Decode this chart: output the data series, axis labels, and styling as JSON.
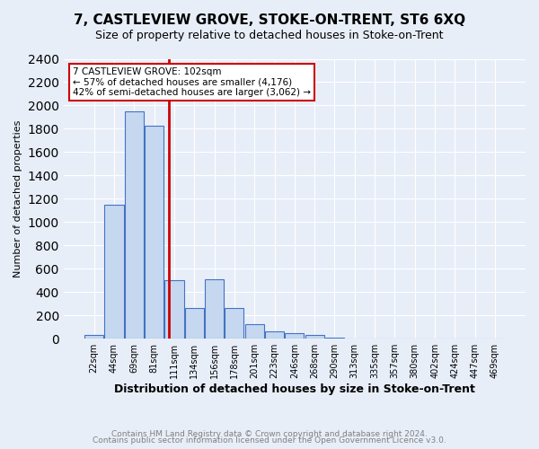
{
  "title": "7, CASTLEVIEW GROVE, STOKE-ON-TRENT, ST6 6XQ",
  "subtitle": "Size of property relative to detached houses in Stoke-on-Trent",
  "xlabel": "Distribution of detached houses by size in Stoke-on-Trent",
  "ylabel": "Number of detached properties",
  "bin_labels": [
    "22sqm",
    "44sqm",
    "69sqm",
    "81sqm",
    "111sqm",
    "134sqm",
    "156sqm",
    "178sqm",
    "201sqm",
    "223sqm",
    "246sqm",
    "268sqm",
    "290sqm",
    "313sqm",
    "335sqm",
    "357sqm",
    "380sqm",
    "402sqm",
    "424sqm",
    "447sqm",
    "469sqm"
  ],
  "bar_heights": [
    30,
    1150,
    1950,
    1825,
    500,
    265,
    510,
    265,
    125,
    60,
    50,
    30,
    10,
    5,
    3,
    2,
    1,
    1,
    0,
    0,
    0
  ],
  "bar_color": "#c5d8f0",
  "bar_edge_color": "#4472c4",
  "property_label": "7 CASTLEVIEW GROVE: 102sqm",
  "annotation_line1": "← 57% of detached houses are smaller (4,176)",
  "annotation_line2": "42% of semi-detached houses are larger (3,062) →",
  "red_line_color": "#cc0000",
  "annotation_box_edge": "#cc0000",
  "red_line_x": 3.75,
  "ylim": [
    0,
    2400
  ],
  "yticks": [
    0,
    200,
    400,
    600,
    800,
    1000,
    1200,
    1400,
    1600,
    1800,
    2000,
    2200,
    2400
  ],
  "footer1": "Contains HM Land Registry data © Crown copyright and database right 2024.",
  "footer2": "Contains public sector information licensed under the Open Government Licence v3.0.",
  "background_color": "#e8eef8",
  "plot_bg_color": "#e8eef8",
  "grid_color": "#ffffff"
}
